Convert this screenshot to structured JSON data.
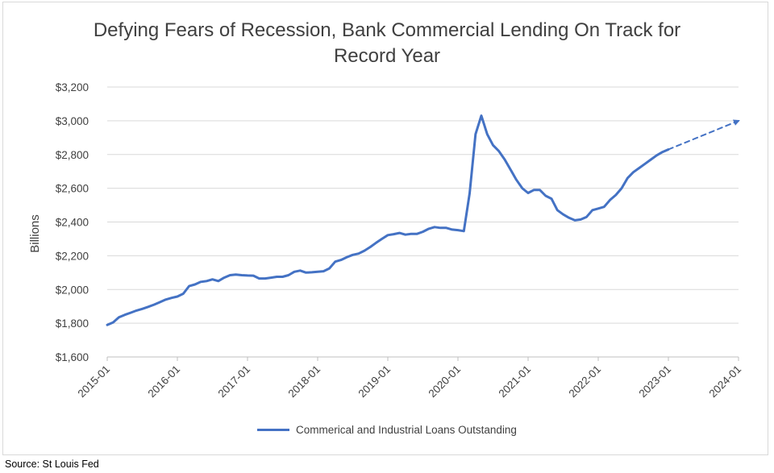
{
  "chart_data": {
    "type": "line",
    "title": "Defying Fears of Recession, Bank Commercial Lending On Track for Record Year",
    "title_lines": [
      "Defying Fears of Recession, Bank Commercial Lending On Track for",
      "Record Year"
    ],
    "ylabel": "Billions",
    "xlabel": "",
    "ylim": [
      1600,
      3200
    ],
    "yticks": [
      1600,
      1800,
      2000,
      2200,
      2400,
      2600,
      2800,
      3000,
      3200
    ],
    "ytick_labels": [
      "$1,600",
      "$1,800",
      "$2,000",
      "$2,200",
      "$2,400",
      "$2,600",
      "$2,800",
      "$3,000",
      "$3,200"
    ],
    "xlim": [
      "2015-01",
      "2024-01"
    ],
    "xtick_labels": [
      "2015-01",
      "2016-01",
      "2017-01",
      "2018-01",
      "2019-01",
      "2020-01",
      "2021-01",
      "2022-01",
      "2023-01",
      "2024-01"
    ],
    "grid": "horizontal",
    "legend_position": "bottom",
    "series": [
      {
        "name": "Commerical and Industrial Loans Outstanding",
        "color": "#4472c4",
        "style": "solid",
        "x": [
          "2015-01",
          "2015-02",
          "2015-03",
          "2015-04",
          "2015-05",
          "2015-06",
          "2015-07",
          "2015-08",
          "2015-09",
          "2015-10",
          "2015-11",
          "2015-12",
          "2016-01",
          "2016-02",
          "2016-03",
          "2016-04",
          "2016-05",
          "2016-06",
          "2016-07",
          "2016-08",
          "2016-09",
          "2016-10",
          "2016-11",
          "2016-12",
          "2017-01",
          "2017-02",
          "2017-03",
          "2017-04",
          "2017-05",
          "2017-06",
          "2017-07",
          "2017-08",
          "2017-09",
          "2017-10",
          "2017-11",
          "2017-12",
          "2018-01",
          "2018-02",
          "2018-03",
          "2018-04",
          "2018-05",
          "2018-06",
          "2018-07",
          "2018-08",
          "2018-09",
          "2018-10",
          "2018-11",
          "2018-12",
          "2019-01",
          "2019-02",
          "2019-03",
          "2019-04",
          "2019-05",
          "2019-06",
          "2019-07",
          "2019-08",
          "2019-09",
          "2019-10",
          "2019-11",
          "2019-12",
          "2020-01",
          "2020-02",
          "2020-03",
          "2020-04",
          "2020-05",
          "2020-06",
          "2020-07",
          "2020-08",
          "2020-09",
          "2020-10",
          "2020-11",
          "2020-12",
          "2021-01",
          "2021-02",
          "2021-03",
          "2021-04",
          "2021-05",
          "2021-06",
          "2021-07",
          "2021-08",
          "2021-09",
          "2021-10",
          "2021-11",
          "2021-12",
          "2022-01",
          "2022-02",
          "2022-03",
          "2022-04",
          "2022-05",
          "2022-06",
          "2022-07",
          "2022-08",
          "2022-09",
          "2022-10",
          "2022-11",
          "2022-12",
          "2023-01"
        ],
        "values": [
          1790,
          1805,
          1835,
          1850,
          1862,
          1875,
          1885,
          1897,
          1910,
          1925,
          1940,
          1950,
          1958,
          1975,
          2020,
          2030,
          2045,
          2050,
          2060,
          2050,
          2070,
          2085,
          2088,
          2085,
          2083,
          2082,
          2065,
          2065,
          2070,
          2075,
          2075,
          2085,
          2105,
          2112,
          2100,
          2102,
          2105,
          2108,
          2125,
          2165,
          2175,
          2192,
          2205,
          2213,
          2230,
          2252,
          2277,
          2300,
          2322,
          2328,
          2335,
          2325,
          2330,
          2330,
          2342,
          2360,
          2370,
          2365,
          2365,
          2355,
          2352,
          2346,
          2570,
          2920,
          3030,
          2920,
          2855,
          2820,
          2770,
          2710,
          2650,
          2600,
          2572,
          2590,
          2590,
          2555,
          2538,
          2470,
          2445,
          2425,
          2410,
          2415,
          2430,
          2470,
          2480,
          2490,
          2530,
          2560,
          2600,
          2660,
          2695,
          2720,
          2745,
          2770,
          2795,
          2815,
          2830
        ]
      },
      {
        "name": "",
        "color": "#4472c4",
        "style": "dashed-arrow",
        "x": [
          "2023-01",
          "2024-01"
        ],
        "values": [
          2830,
          3000
        ]
      }
    ]
  },
  "source": "Source: St Louis Fed"
}
